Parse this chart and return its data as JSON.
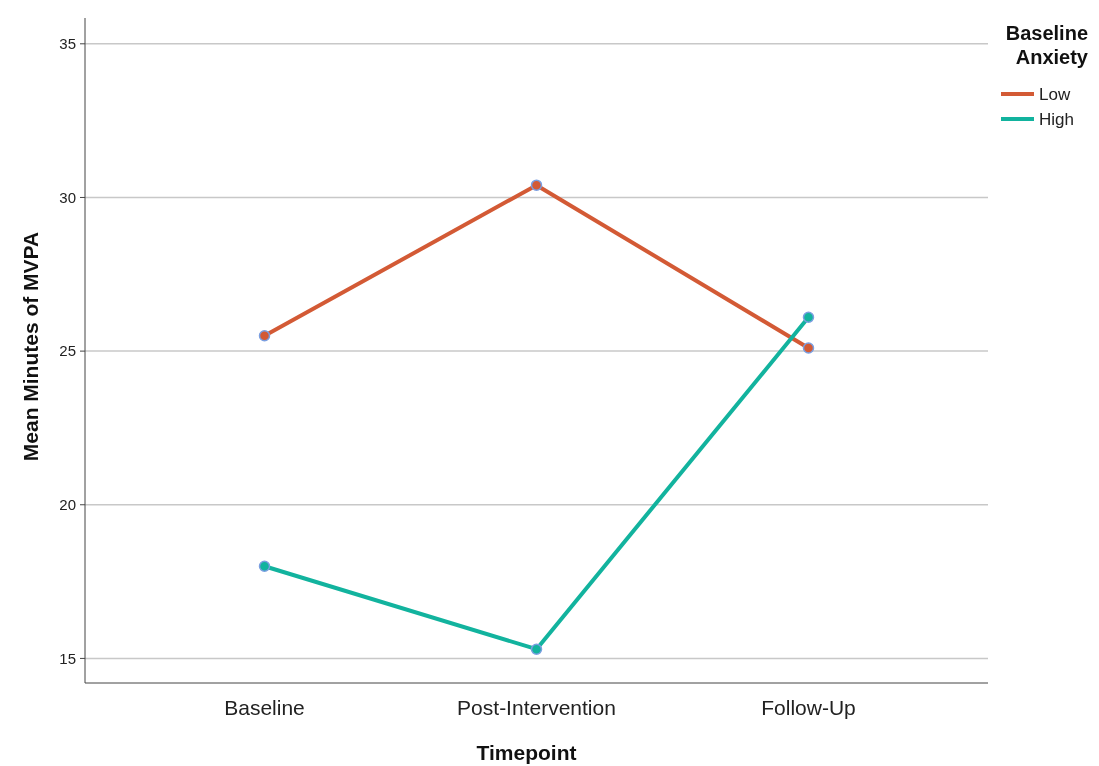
{
  "chart_data": {
    "type": "line",
    "xlabel": "Timepoint",
    "ylabel": "Mean Minutes of MVPA",
    "legend_title": "Baseline Anxiety",
    "categories": [
      "Baseline",
      "Post-Intervention",
      "Follow-Up"
    ],
    "series": [
      {
        "name": "Low",
        "color": "#d35a35",
        "values": [
          25.5,
          30.4,
          25.1
        ]
      },
      {
        "name": "High",
        "color": "#12b39e",
        "values": [
          18.0,
          15.3,
          26.1
        ]
      }
    ],
    "ylim": [
      14.2,
      36.1
    ],
    "yticks": [
      15,
      20,
      25,
      30,
      35
    ],
    "grid": "y",
    "legend": "top right",
    "marker": "circle",
    "line_style": "solid"
  }
}
